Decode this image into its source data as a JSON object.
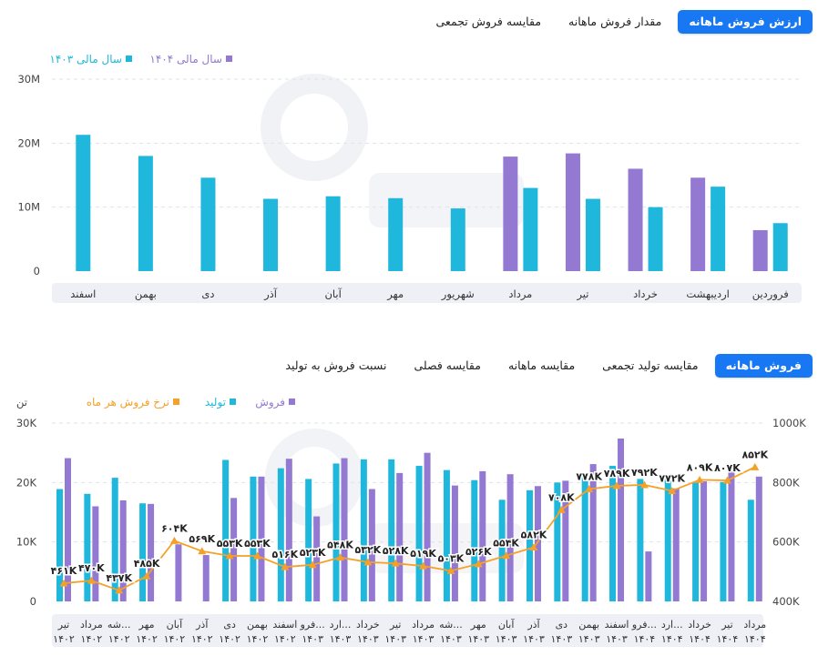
{
  "top_tabs": [
    {
      "label": "ارزش فروش ماهانه",
      "active": true
    },
    {
      "label": "مقدار فروش ماهانه",
      "active": false
    },
    {
      "label": "مقایسه فروش تجمعی",
      "active": false
    }
  ],
  "bottom_tabs": [
    {
      "label": "فروش ماهانه",
      "active": true
    },
    {
      "label": "مقایسه تولید تجمعی",
      "active": false
    },
    {
      "label": "مقایسه ماهانه",
      "active": false
    },
    {
      "label": "مقایسه فصلی",
      "active": false
    },
    {
      "label": "نسبت فروش به تولید",
      "active": false
    }
  ],
  "colors": {
    "cyan": "#1fb8dc",
    "purple": "#9379d1",
    "orange": "#f5a027",
    "accent": "#1877f2",
    "axis_band": "#eef0f6"
  },
  "chart_data": [
    {
      "type": "bar",
      "categories": [
        "فروردین",
        "اردیبهشت",
        "خرداد",
        "تیر",
        "مرداد",
        "شهریور",
        "مهر",
        "آبان",
        "آذر",
        "دی",
        "بهمن",
        "اسفند"
      ],
      "series": [
        {
          "name": "سال مالی ۱۴۰۳",
          "color": "#1fb8dc",
          "values": [
            7.5,
            13.2,
            10.0,
            11.3,
            13.0,
            9.8,
            11.4,
            11.7,
            11.3,
            14.6,
            18.0,
            21.3
          ]
        },
        {
          "name": "سال مالی ۱۴۰۴",
          "color": "#9379d1",
          "values": [
            6.4,
            14.6,
            16.0,
            18.4,
            17.9,
            null,
            null,
            null,
            null,
            null,
            null,
            null
          ]
        }
      ],
      "ylim": [
        0,
        30
      ],
      "yticks": [
        "0",
        "10M",
        "20M",
        "30M"
      ],
      "legend": "top-left"
    },
    {
      "type": "bar",
      "categories": [
        "تیر",
        "مرداد",
        "شه...",
        "مهر",
        "آبان",
        "آذر",
        "دی",
        "بهمن",
        "اسفند",
        "فرو...",
        "ارد...",
        "خرداد",
        "تیر",
        "مرداد",
        "شه...",
        "مهر",
        "آبان",
        "آذر",
        "دی",
        "بهمن",
        "اسفند",
        "فرو...",
        "ارد...",
        "خرداد",
        "تیر",
        "مرداد"
      ],
      "years": [
        "۱۴۰۲",
        "۱۴۰۲",
        "۱۴۰۲",
        "۱۴۰۲",
        "۱۴۰۲",
        "۱۴۰۲",
        "۱۴۰۲",
        "۱۴۰۲",
        "۱۴۰۲",
        "۱۴۰۳",
        "۱۴۰۳",
        "۱۴۰۳",
        "۱۴۰۳",
        "۱۴۰۳",
        "۱۴۰۳",
        "۱۴۰۳",
        "۱۴۰۳",
        "۱۴۰۳",
        "۱۴۰۳",
        "۱۴۰۳",
        "۱۴۰۳",
        "۱۴۰۴",
        "۱۴۰۴",
        "۱۴۰۴",
        "۱۴۰۴",
        "۱۴۰۴"
      ],
      "series": [
        {
          "name": "تولید",
          "color": "#1fb8dc",
          "values": [
            18.9,
            18.1,
            20.8,
            16.5,
            0,
            0,
            23.8,
            21.0,
            22.4,
            20.6,
            23.2,
            23.9,
            23.9,
            22.8,
            22.1,
            20.4,
            17.1,
            18.7,
            20.0,
            21.0,
            22.8,
            20.6,
            20.6,
            20.0,
            20.1,
            17.1
          ]
        },
        {
          "name": "فروش",
          "color": "#9379d1",
          "values": [
            24.1,
            16.0,
            17.0,
            16.4,
            9.6,
            7.8,
            17.4,
            21.0,
            24.0,
            14.3,
            24.1,
            18.9,
            21.6,
            25.0,
            19.5,
            21.9,
            21.4,
            19.4,
            20.3,
            23.1,
            27.4,
            8.4,
            19.0,
            20.2,
            22.4,
            21.0
          ]
        }
      ],
      "line": {
        "name": "نرخ فروش هر ماه",
        "color": "#f5a027",
        "values": [
          461,
          470,
          437,
          485,
          604,
          569,
          553,
          553,
          516,
          523,
          548,
          532,
          528,
          519,
          503,
          526,
          554,
          582,
          708,
          778,
          789,
          792,
          772,
          809,
          807,
          852
        ],
        "labels": [
          "۴۶۱K",
          "۴۷۰K",
          "۴۳۷K",
          "۴۸۵K",
          "۶۰۴K",
          "۵۶۹K",
          "۵۵۳K",
          "۵۵۳K",
          "۵۱۶K",
          "۵۲۳K",
          "۵۴۸K",
          "۵۳۲K",
          "۵۲۸K",
          "۵۱۹K",
          "۵۰۳K",
          "۵۲۶K",
          "۵۵۴K",
          "۵۸۲K",
          "۷۰۸K",
          "۷۷۸K",
          "۷۸۹K",
          "۷۹۲K",
          "۷۷۲K",
          "۸۰۹K",
          "۸۰۷K",
          "۸۵۲K"
        ]
      },
      "ylim": [
        0,
        30
      ],
      "yticks": [
        "0",
        "10K",
        "20K",
        "30K"
      ],
      "ylabel": "تن",
      "y2lim": [
        400,
        1000
      ],
      "y2ticks": [
        "400K",
        "600K",
        "800K",
        "1000K"
      ],
      "legend": "top-left"
    }
  ]
}
